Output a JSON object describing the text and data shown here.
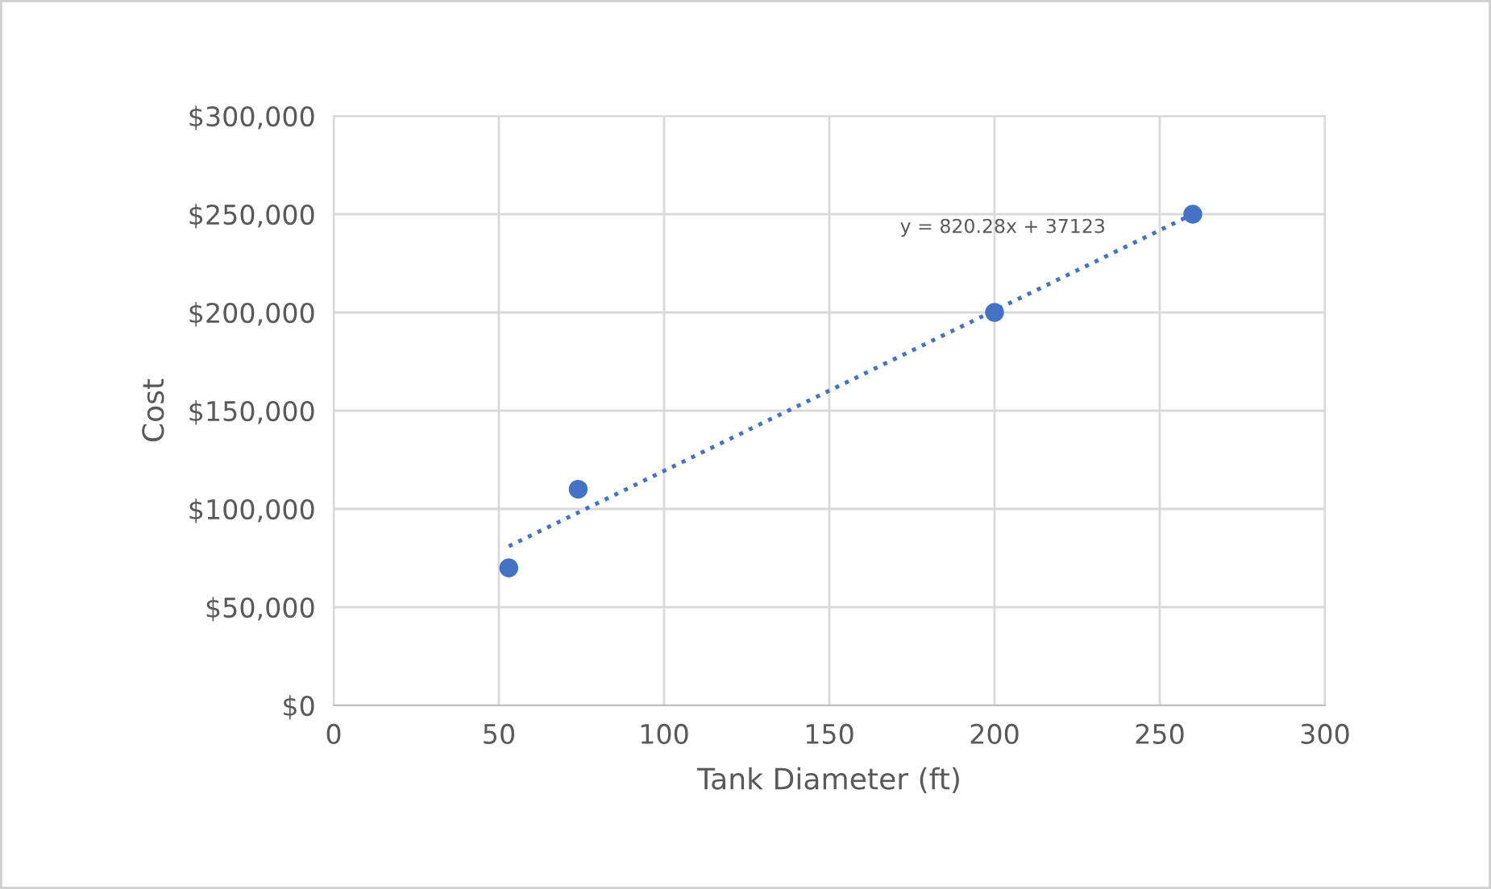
{
  "chart_data": {
    "type": "scatter",
    "xlabel": "Tank Diameter (ft)",
    "ylabel": "Cost",
    "series": [
      {
        "color": "#4472c4",
        "x": [
          53,
          74,
          200,
          260
        ],
        "values": [
          70000,
          110000,
          200000,
          250000
        ],
        "marker": "circle"
      },
      {
        "type": "line",
        "color": "#4472c4",
        "x": [
          53,
          260
        ],
        "values": [
          81000,
          250000
        ],
        "line_style": "dotted",
        "marker": "none"
      }
    ],
    "annotations": [
      "y = 820.28x + 37123"
    ],
    "xlim": [
      0,
      300
    ],
    "xticks": [
      0,
      50,
      100,
      150,
      200,
      250,
      300
    ],
    "ylim": [
      0,
      300000
    ],
    "yticks": [
      {
        "value": 0,
        "label": "$0"
      },
      {
        "value": 50000,
        "label": "$50,000"
      },
      {
        "value": 100000,
        "label": "$100,000"
      },
      {
        "value": 150000,
        "label": "$150,000"
      },
      {
        "value": 200000,
        "label": "$200,000"
      },
      {
        "value": 250000,
        "label": "$250,000"
      },
      {
        "value": 300000,
        "label": "$300,000"
      }
    ],
    "grid": true,
    "legend": false
  }
}
